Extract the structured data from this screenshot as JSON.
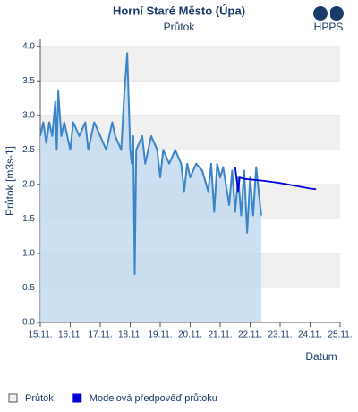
{
  "chart_data": {
    "type": "line",
    "title": "Horní Staré Město (Úpa)",
    "subtitle": "Průtok",
    "logo": "HPPS",
    "y_label": "Průtok [m3s-1]",
    "x_label": "Datum",
    "xlim": [
      15,
      25
    ],
    "xticks": [
      {
        "value": 15,
        "label": "15.11."
      },
      {
        "value": 16,
        "label": "16.11."
      },
      {
        "value": 17,
        "label": "17.11."
      },
      {
        "value": 18,
        "label": "18.11."
      },
      {
        "value": 19,
        "label": "19.11."
      },
      {
        "value": 20,
        "label": "20.11."
      },
      {
        "value": 21,
        "label": "21.11."
      },
      {
        "value": 22,
        "label": "22.11."
      },
      {
        "value": 23,
        "label": "23.11."
      },
      {
        "value": 24,
        "label": "24.11."
      },
      {
        "value": 25,
        "label": "25.11."
      }
    ],
    "ylim": [
      0,
      4.1
    ],
    "yticks": [
      {
        "value": 0,
        "label": "0.0"
      },
      0.5,
      {
        "value": 1,
        "label": "1.0"
      },
      1.5,
      {
        "value": 2,
        "label": "2.0"
      },
      2.5,
      {
        "value": 3,
        "label": "3.0"
      },
      3.5,
      {
        "value": 4,
        "label": "4.0"
      }
    ],
    "grid": "bands",
    "legend": "bottom-left",
    "series": [
      {
        "name": "Průtok",
        "color": "#3a85c8",
        "fill": "#c4dbf0",
        "area": true,
        "x": [
          15.0,
          15.1,
          15.2,
          15.3,
          15.4,
          15.5,
          15.55,
          15.6,
          15.7,
          15.8,
          16.0,
          16.1,
          16.3,
          16.5,
          16.6,
          16.8,
          17.0,
          17.2,
          17.4,
          17.5,
          17.7,
          17.8,
          17.9,
          18.0,
          18.05,
          18.1,
          18.15,
          18.2,
          18.4,
          18.5,
          18.7,
          18.9,
          19.0,
          19.1,
          19.3,
          19.5,
          19.7,
          19.8,
          19.9,
          20.0,
          20.2,
          20.4,
          20.6,
          20.7,
          20.8,
          20.9,
          21.0,
          21.1,
          21.3,
          21.4,
          21.5,
          21.6,
          21.7,
          21.8,
          21.9,
          22.0,
          22.1,
          22.2,
          22.37
        ],
        "values": [
          2.7,
          2.9,
          2.6,
          2.9,
          2.7,
          3.2,
          2.5,
          3.35,
          2.7,
          2.9,
          2.5,
          2.9,
          2.7,
          2.9,
          2.5,
          2.9,
          2.7,
          2.5,
          2.9,
          2.7,
          2.5,
          3.3,
          3.9,
          2.5,
          2.3,
          2.7,
          0.7,
          2.5,
          2.7,
          2.3,
          2.7,
          2.5,
          2.1,
          2.5,
          2.3,
          2.5,
          2.3,
          1.9,
          2.3,
          2.1,
          2.3,
          2.2,
          1.9,
          2.3,
          1.6,
          2.3,
          2.1,
          2.25,
          1.7,
          2.2,
          1.6,
          2.1,
          1.55,
          2.2,
          1.3,
          2.1,
          1.55,
          2.25,
          1.55
        ]
      },
      {
        "name": "Modelová předpověď průtoku",
        "color": "#0000dd",
        "area": false,
        "x": [
          21.5,
          21.6,
          21.65,
          21.8,
          22.5,
          23.0,
          23.5,
          24.0,
          24.2
        ],
        "values": [
          2.25,
          1.9,
          2.1,
          2.08,
          2.05,
          2.02,
          1.98,
          1.94,
          1.93
        ]
      }
    ]
  }
}
